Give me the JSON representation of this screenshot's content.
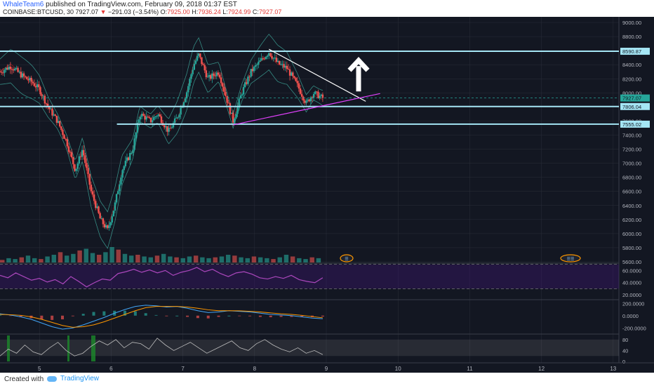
{
  "header": {
    "user": "WhaleTeam6",
    "published": " published on TradingView.com, February 09, 2018 01:37 EST",
    "symbol": "COINBASE:BTCUSD, 30",
    "last": "7927.07",
    "change": "−291.03 (−3.54%)",
    "o_label": "O:",
    "o": "7925.00",
    "h_label": "H:",
    "h": "7936.24",
    "l_label": "L:",
    "l": "7924.99",
    "c_label": "C:",
    "c": "7927.07"
  },
  "footer": {
    "created_with": "Created with",
    "brand": "TradingView"
  },
  "colors": {
    "background": "#131722",
    "grid": "#2a2e39",
    "up": "#26a69a",
    "down": "#ef5350",
    "level": "#a5e6f5",
    "rsi": "#ab47bc",
    "trend_support": "#e040fb",
    "arrow": "#ffffff"
  },
  "chart_data": {
    "type": "candlestick",
    "price_axis": {
      "ticks": [
        "9000.00",
        "8800.00",
        "8600.00",
        "8400.00",
        "8200.00",
        "8000.00",
        "7800.00",
        "7600.00",
        "7400.00",
        "7200.00",
        "7000.00",
        "6800.00",
        "6600.00",
        "6400.00",
        "6200.00",
        "6000.00",
        "5800.00",
        "5600.00"
      ],
      "ylim": [
        5580,
        9080
      ]
    },
    "price_labels": [
      {
        "text": "8590.87",
        "value": 8590.87
      },
      {
        "text": "7927.07",
        "value": 7927.07
      },
      {
        "text": "7806.04",
        "value": 7806.04
      },
      {
        "text": "7555.02",
        "value": 7555.02
      }
    ],
    "horizontal_levels": [
      8590.87,
      7806.04,
      7555.02
    ],
    "resistance_trendline": {
      "from": {
        "x": 8.2,
        "y": 8620
      },
      "to": {
        "x": 9.55,
        "y": 7880
      }
    },
    "support_trendline": {
      "from": {
        "x": 7.7,
        "y": 7545
      },
      "to": {
        "x": 9.75,
        "y": 7990
      }
    },
    "arrow_up": {
      "x": 9.45,
      "y_from": 8020,
      "y_to": 8460
    },
    "time_axis": {
      "ticks": [
        "5",
        "6",
        "7",
        "8",
        "9",
        "10",
        "11",
        "12",
        "13"
      ],
      "values": [
        5,
        6,
        7,
        8,
        9,
        10,
        11,
        12,
        13
      ],
      "xlim": [
        4.45,
        13.08
      ]
    },
    "price_path": [
      {
        "x": 4.45,
        "y": 8300
      },
      {
        "x": 4.6,
        "y": 8380
      },
      {
        "x": 4.75,
        "y": 8250
      },
      {
        "x": 4.9,
        "y": 8150
      },
      {
        "x": 5.0,
        "y": 8050
      },
      {
        "x": 5.12,
        "y": 7800
      },
      {
        "x": 5.25,
        "y": 7600
      },
      {
        "x": 5.38,
        "y": 7300
      },
      {
        "x": 5.5,
        "y": 6900
      },
      {
        "x": 5.6,
        "y": 7200
      },
      {
        "x": 5.72,
        "y": 6600
      },
      {
        "x": 5.85,
        "y": 6200
      },
      {
        "x": 5.95,
        "y": 6050
      },
      {
        "x": 6.05,
        "y": 6400
      },
      {
        "x": 6.15,
        "y": 6900
      },
      {
        "x": 6.3,
        "y": 7200
      },
      {
        "x": 6.4,
        "y": 7700
      },
      {
        "x": 6.55,
        "y": 7600
      },
      {
        "x": 6.65,
        "y": 7700
      },
      {
        "x": 6.8,
        "y": 7450
      },
      {
        "x": 6.92,
        "y": 7650
      },
      {
        "x": 7.05,
        "y": 8000
      },
      {
        "x": 7.15,
        "y": 8400
      },
      {
        "x": 7.22,
        "y": 8540
      },
      {
        "x": 7.35,
        "y": 8200
      },
      {
        "x": 7.5,
        "y": 8300
      },
      {
        "x": 7.6,
        "y": 7950
      },
      {
        "x": 7.7,
        "y": 7600
      },
      {
        "x": 7.82,
        "y": 8000
      },
      {
        "x": 7.95,
        "y": 8300
      },
      {
        "x": 8.08,
        "y": 8450
      },
      {
        "x": 8.2,
        "y": 8580
      },
      {
        "x": 8.32,
        "y": 8420
      },
      {
        "x": 8.45,
        "y": 8350
      },
      {
        "x": 8.6,
        "y": 8100
      },
      {
        "x": 8.72,
        "y": 7850
      },
      {
        "x": 8.82,
        "y": 8000
      },
      {
        "x": 8.95,
        "y": 7927
      }
    ],
    "volume": [
      3,
      5,
      4,
      6,
      8,
      5,
      4,
      7,
      9,
      12,
      8,
      10,
      14,
      16,
      11,
      9,
      12,
      18,
      15,
      10,
      8,
      9,
      7,
      6,
      8,
      10,
      7,
      6,
      5,
      7,
      8,
      6,
      5,
      6,
      7,
      9,
      8,
      6,
      5,
      7,
      6,
      5,
      4,
      6,
      9,
      7,
      5,
      4,
      6,
      5
    ],
    "rsi": {
      "ticks": [
        "60.0000",
        "40.0000",
        "20.0000"
      ],
      "ylim": [
        12,
        72
      ],
      "upper": 70,
      "lower": 30,
      "values": [
        52,
        48,
        56,
        50,
        44,
        47,
        41,
        45,
        38,
        50,
        42,
        33,
        40,
        46,
        44,
        55,
        58,
        62,
        57,
        61,
        56,
        60,
        52,
        57,
        60,
        65,
        58,
        62,
        55,
        50,
        56,
        58,
        54,
        48,
        46,
        50,
        47,
        52,
        45,
        42,
        40,
        48
      ]
    },
    "macd": {
      "ticks": [
        "200.0000",
        "0.0000",
        "-200.0000"
      ],
      "ylim": [
        -300,
        260
      ],
      "macd": [
        30,
        10,
        -20,
        -60,
        -120,
        -180,
        -220,
        -200,
        -150,
        -90,
        -30,
        40,
        100,
        150,
        170,
        160,
        140,
        150,
        120,
        80,
        50,
        60,
        80,
        70,
        60,
        40,
        20,
        10,
        0,
        -20,
        -40,
        -50
      ],
      "signal": [
        20,
        15,
        5,
        -20,
        -60,
        -110,
        -160,
        -190,
        -180,
        -150,
        -100,
        -40,
        20,
        80,
        130,
        150,
        150,
        150,
        140,
        120,
        95,
        80,
        80,
        78,
        70,
        60,
        45,
        30,
        20,
        5,
        -15,
        -35
      ]
    },
    "stoch": {
      "ticks": [
        "80",
        "40",
        "0"
      ],
      "ylim": [
        -5,
        100
      ],
      "values": [
        20,
        45,
        30,
        60,
        35,
        25,
        50,
        70,
        40,
        20,
        30,
        55,
        75,
        60,
        80,
        50,
        70,
        65,
        45,
        85,
        60,
        40,
        55,
        70,
        50,
        30,
        45,
        60,
        75,
        50,
        40,
        65,
        80,
        60,
        45,
        35,
        50,
        30,
        40,
        25
      ]
    }
  }
}
